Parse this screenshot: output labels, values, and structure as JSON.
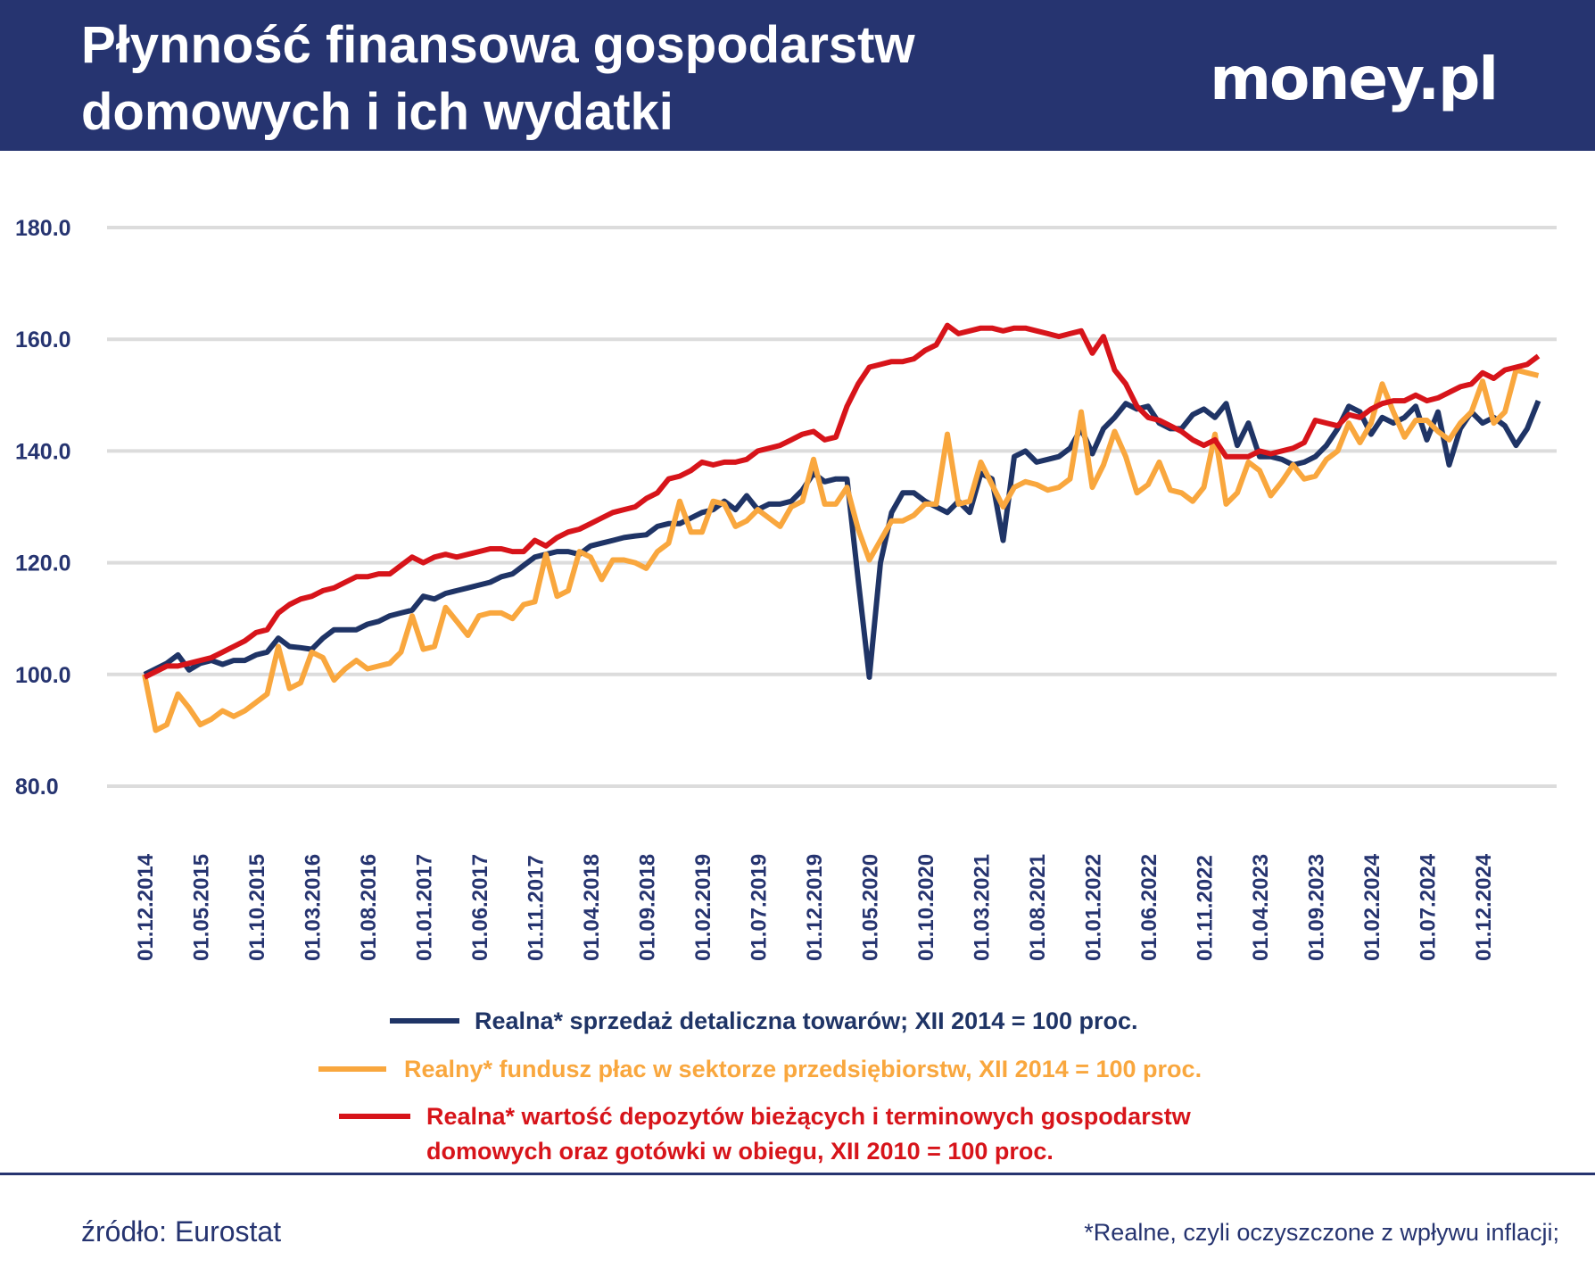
{
  "header": {
    "title_lines": [
      "Płynność finansowa gospodarstw",
      "domowych i ich wydatki"
    ],
    "logo": "money.pl"
  },
  "chart_data": {
    "type": "line",
    "grid": true,
    "ylim": [
      80,
      180
    ],
    "yticks": [
      {
        "value": 80,
        "label": "80.0"
      },
      {
        "value": 100,
        "label": "100.0"
      },
      {
        "value": 120,
        "label": "120.0"
      },
      {
        "value": 140,
        "label": "140.0"
      },
      {
        "value": 160,
        "label": "160.0"
      },
      {
        "value": 180,
        "label": "180.0"
      }
    ],
    "categories": [
      "01.12.2014",
      null,
      null,
      null,
      null,
      "01.05.2015",
      null,
      null,
      null,
      null,
      "01.10.2015",
      null,
      null,
      null,
      null,
      "01.03.2016",
      null,
      null,
      null,
      null,
      "01.08.2016",
      null,
      null,
      null,
      null,
      "01.01.2017",
      null,
      null,
      null,
      null,
      "01.06.2017",
      null,
      null,
      null,
      null,
      "01.11.2017",
      null,
      null,
      null,
      null,
      "01.04.2018",
      null,
      null,
      null,
      null,
      "01.09.2018",
      null,
      null,
      null,
      null,
      "01.02.2019",
      null,
      null,
      null,
      null,
      "01.07.2019",
      null,
      null,
      null,
      null,
      "01.12.2019",
      null,
      null,
      null,
      null,
      "01.05.2020",
      null,
      null,
      null,
      null,
      "01.10.2020",
      null,
      null,
      null,
      null,
      "01.03.2021",
      null,
      null,
      null,
      null,
      "01.08.2021",
      null,
      null,
      null,
      null,
      "01.01.2022",
      null,
      null,
      null,
      null,
      "01.06.2022",
      null,
      null,
      null,
      null,
      "01.11.2022",
      null,
      null,
      null,
      null,
      "01.04.2023",
      null,
      null,
      null,
      null,
      "01.09.2023",
      null,
      null,
      null,
      null,
      "01.02.2024",
      null,
      null,
      null,
      null,
      "01.07.2024",
      null,
      null,
      null,
      null,
      "01.12.2024",
      null,
      null,
      null,
      null,
      null
    ],
    "series": [
      {
        "name": "Realna* sprzedaż detaliczna towarów; XII 2014 = 100 proc.",
        "color": "#1f3466",
        "values": [
          100,
          101,
          102,
          103.5,
          100.8,
          102,
          102.5,
          101.8,
          102.5,
          102.5,
          103.5,
          104,
          106.5,
          105,
          104.8,
          104.5,
          106.5,
          108,
          108,
          108,
          109,
          109.5,
          110.5,
          111,
          111.5,
          114,
          113.5,
          114.5,
          115,
          115.5,
          116,
          116.5,
          117.5,
          118,
          119.5,
          121,
          121.5,
          122,
          122,
          121.5,
          123,
          123.5,
          124,
          124.5,
          124.8,
          125,
          126.5,
          127,
          127,
          128,
          129,
          129.5,
          131,
          129.5,
          132,
          129.5,
          130.5,
          130.5,
          131,
          133,
          136,
          134.5,
          135,
          135,
          117,
          99.5,
          120,
          129,
          132.5,
          132.5,
          131,
          130,
          129,
          131,
          129,
          136,
          135,
          124,
          139,
          140,
          138,
          138.5,
          139,
          140.5,
          144,
          139.5,
          144,
          146,
          148.5,
          147.5,
          148,
          145,
          144,
          144,
          146.5,
          147.5,
          146,
          148.5,
          141,
          145,
          139,
          139,
          138.5,
          137.5,
          138,
          139,
          141,
          144,
          148,
          147,
          143,
          146,
          145,
          146,
          148,
          142,
          147,
          137.5,
          144,
          147,
          145,
          146,
          144.5,
          141,
          144,
          149
        ]
      },
      {
        "name": "Realny* fundusz płac w sektorze przedsiębiorstw, XII 2014 = 100 proc.",
        "color": "#f9a73e",
        "values": [
          100,
          90,
          91,
          96.5,
          94,
          91,
          92,
          93.5,
          92.5,
          93.5,
          95,
          96.5,
          105,
          97.5,
          98.5,
          104,
          103,
          99,
          101,
          102.5,
          101,
          101.5,
          102,
          104,
          110.5,
          104.5,
          105,
          112,
          109.5,
          107,
          110.5,
          111,
          111,
          110,
          112.5,
          113,
          121.5,
          114,
          115,
          122,
          121,
          117,
          120.5,
          120.5,
          120,
          119,
          122,
          123.5,
          131,
          125.5,
          125.5,
          131,
          130.5,
          126.5,
          127.5,
          129.5,
          128,
          126.5,
          130,
          131,
          138.5,
          130.5,
          130.5,
          133.5,
          126,
          120.5,
          124,
          127.5,
          127.5,
          128.5,
          130.5,
          130.5,
          143,
          130.5,
          131,
          138,
          134,
          130,
          133.5,
          134.5,
          134,
          133,
          133.5,
          135,
          147,
          133.5,
          137.5,
          143.5,
          139,
          132.5,
          134,
          138,
          133,
          132.5,
          131,
          133.5,
          143,
          130.5,
          132.5,
          138,
          136.5,
          132,
          134.5,
          137.5,
          135,
          135.5,
          138.5,
          140,
          145,
          141.5,
          145,
          152,
          147,
          142.5,
          145.5,
          145.5,
          143.5,
          142,
          145,
          147,
          152.5,
          145,
          147,
          154.5,
          154,
          153.5
        ]
      },
      {
        "name": "Realna* wartość depozytów bieżących i terminowych gospodarstw domowych oraz gotówki w obiegu, XII 2010 = 100 proc.",
        "color": "#d7141a",
        "values": [
          99.5,
          100.5,
          101.5,
          101.5,
          102,
          102.5,
          103,
          104,
          105,
          106,
          107.5,
          108,
          111,
          112.5,
          113.5,
          114,
          115,
          115.5,
          116.5,
          117.5,
          117.5,
          118,
          118,
          119.5,
          121,
          120,
          121,
          121.5,
          121,
          121.5,
          122,
          122.5,
          122.5,
          122,
          122,
          124,
          123,
          124.5,
          125.5,
          126,
          127,
          128,
          129,
          129.5,
          130,
          131.5,
          132.5,
          135,
          135.5,
          136.5,
          138,
          137.5,
          138,
          138,
          138.5,
          140,
          140.5,
          141,
          142,
          143,
          143.5,
          142,
          142.5,
          148,
          152,
          155,
          155.5,
          156,
          156,
          156.5,
          158,
          159,
          162.5,
          161,
          161.5,
          162,
          162,
          161.5,
          162,
          162,
          161.5,
          161,
          160.5,
          161,
          161.5,
          157.5,
          160.5,
          154.5,
          152,
          148,
          146,
          145.5,
          144.5,
          143.5,
          142,
          141,
          142,
          139,
          139,
          139,
          140,
          139.5,
          140,
          140.5,
          141.5,
          145.5,
          145,
          144.5,
          146.5,
          146,
          147.5,
          148.5,
          149,
          149,
          150,
          149,
          149.5,
          150.5,
          151.5,
          152,
          154,
          153,
          154.5,
          155,
          155.5,
          157
        ]
      }
    ]
  },
  "footer": {
    "source": "źródło: Eurostat",
    "note": "*Realne, czyli oczyszczone z wpływu inflacji;"
  }
}
